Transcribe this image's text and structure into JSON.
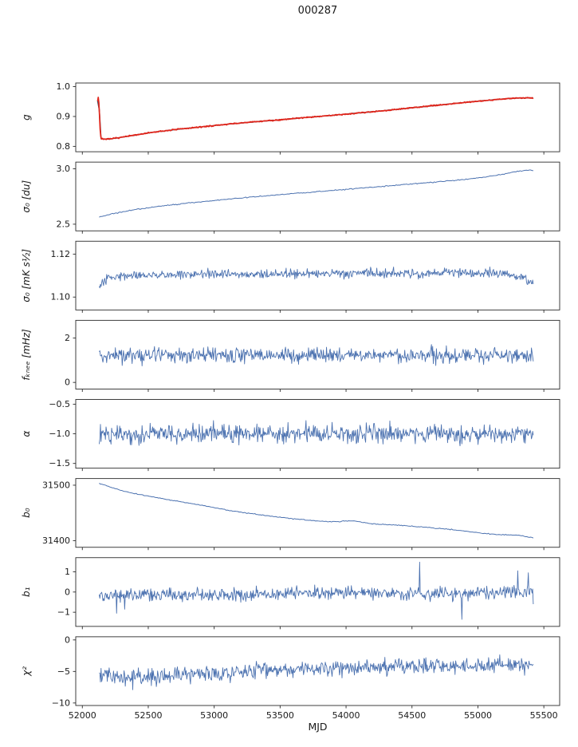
{
  "title": "000287",
  "chart_data": {
    "type": "line",
    "title": "000287",
    "xlabel": "MJD",
    "xlim": [
      51950,
      55620
    ],
    "x_range": [
      52128,
      55420
    ],
    "xtick_vals": [
      52000,
      52500,
      53000,
      53500,
      54000,
      54500,
      55000,
      55500
    ],
    "xtick_labels": [
      "52000",
      "52500",
      "53000",
      "53500",
      "54000",
      "54500",
      "55000",
      "55500"
    ],
    "grid": false,
    "legend": "none",
    "line_color": "#4c72b0",
    "model_color": "#4d4d5c",
    "data_color": "#e1251b",
    "panels": [
      {
        "ylabel": "g",
        "ylim": [
          0.782,
          1.012
        ],
        "ytick_vals": [
          1.0,
          0.9,
          0.8
        ],
        "ytick_labels": [
          "1.0",
          "0.9",
          "0.8"
        ],
        "series": [
          {
            "name": "model",
            "color": "#4d4d5c",
            "width": 1.5,
            "n": 260,
            "noise": 0.0005,
            "seed": 11,
            "x_range": [
              52116,
              55420
            ],
            "base_points": [
              [
                52116,
                0.952
              ],
              [
                52122,
                0.968
              ],
              [
                52128,
                0.93
              ],
              [
                52134,
                0.862
              ],
              [
                52142,
                0.825
              ],
              [
                52200,
                0.824
              ],
              [
                52350,
                0.834
              ],
              [
                52500,
                0.845
              ],
              [
                52700,
                0.856
              ],
              [
                52900,
                0.865
              ],
              [
                53100,
                0.874
              ],
              [
                53300,
                0.882
              ],
              [
                53500,
                0.889
              ],
              [
                53700,
                0.897
              ],
              [
                53900,
                0.904
              ],
              [
                54100,
                0.912
              ],
              [
                54300,
                0.92
              ],
              [
                54500,
                0.929
              ],
              [
                54700,
                0.938
              ],
              [
                54900,
                0.947
              ],
              [
                55050,
                0.953
              ],
              [
                55200,
                0.959
              ],
              [
                55320,
                0.962
              ],
              [
                55420,
                0.962
              ]
            ]
          },
          {
            "name": "data",
            "color": "#e1251b",
            "width": 1.7,
            "n": 700,
            "noise": 0.0016,
            "seed": 7,
            "x_range": [
              52116,
              55420
            ],
            "base_points": [
              [
                52116,
                0.952
              ],
              [
                52122,
                0.968
              ],
              [
                52128,
                0.93
              ],
              [
                52134,
                0.862
              ],
              [
                52142,
                0.825
              ],
              [
                52200,
                0.824
              ],
              [
                52350,
                0.834
              ],
              [
                52500,
                0.845
              ],
              [
                52700,
                0.856
              ],
              [
                52900,
                0.865
              ],
              [
                53100,
                0.874
              ],
              [
                53300,
                0.882
              ],
              [
                53500,
                0.889
              ],
              [
                53700,
                0.897
              ],
              [
                53900,
                0.904
              ],
              [
                54100,
                0.912
              ],
              [
                54300,
                0.92
              ],
              [
                54500,
                0.929
              ],
              [
                54700,
                0.938
              ],
              [
                54900,
                0.947
              ],
              [
                55050,
                0.953
              ],
              [
                55200,
                0.959
              ],
              [
                55320,
                0.962
              ],
              [
                55420,
                0.962
              ]
            ]
          }
        ]
      },
      {
        "ylabel": "σ₀ [du]",
        "ylim": [
          2.44,
          3.06
        ],
        "ytick_vals": [
          3.0,
          2.5
        ],
        "ytick_labels": [
          "3.0",
          "2.5"
        ],
        "series": [
          {
            "name": "sigma0_du",
            "color": "#4c72b0",
            "width": 1.0,
            "n": 330,
            "noise": 0.004,
            "seed": 21,
            "base_points": [
              [
                52130,
                2.565
              ],
              [
                52250,
                2.6
              ],
              [
                52400,
                2.632
              ],
              [
                52550,
                2.655
              ],
              [
                52700,
                2.678
              ],
              [
                52850,
                2.697
              ],
              [
                53000,
                2.714
              ],
              [
                53200,
                2.736
              ],
              [
                53400,
                2.757
              ],
              [
                53600,
                2.776
              ],
              [
                53800,
                2.795
              ],
              [
                54000,
                2.814
              ],
              [
                54200,
                2.833
              ],
              [
                54400,
                2.853
              ],
              [
                54600,
                2.872
              ],
              [
                54800,
                2.893
              ],
              [
                55000,
                2.916
              ],
              [
                55150,
                2.942
              ],
              [
                55280,
                2.972
              ],
              [
                55370,
                2.988
              ],
              [
                55420,
                2.983
              ]
            ]
          }
        ]
      },
      {
        "ylabel": "σ₀ [mK s½]",
        "ylim": [
          1.094,
          1.126
        ],
        "ytick_vals": [
          1.12,
          1.1
        ],
        "ytick_labels": [
          "1.12",
          "1.10"
        ],
        "series": [
          {
            "name": "sigma0_mK",
            "color": "#4c72b0",
            "width": 0.9,
            "n": 700,
            "noise": 0.0018,
            "seed": 31,
            "base_points": [
              [
                52130,
                1.1045
              ],
              [
                52190,
                1.1085
              ],
              [
                52300,
                1.1103
              ],
              [
                53000,
                1.1105
              ],
              [
                53800,
                1.1108
              ],
              [
                54600,
                1.1112
              ],
              [
                55200,
                1.1113
              ],
              [
                55330,
                1.109
              ],
              [
                55420,
                1.1068
              ]
            ]
          }
        ]
      },
      {
        "ylabel": "fₖₙₑₑ [mHz]",
        "ylim": [
          -0.3,
          2.8
        ],
        "ytick_vals": [
          2,
          0
        ],
        "ytick_labels": [
          "2",
          "0"
        ],
        "series": [
          {
            "name": "f_knee",
            "color": "#4c72b0",
            "width": 0.9,
            "n": 700,
            "noise": 0.3,
            "seed": 41,
            "base_points": [
              [
                52130,
                1.22
              ],
              [
                55420,
                1.24
              ]
            ]
          }
        ]
      },
      {
        "ylabel": "α",
        "ylim": [
          -1.58,
          -0.42
        ],
        "ytick_vals": [
          -0.5,
          -1.0,
          -1.5
        ],
        "ytick_labels": [
          "−0.5",
          "−1.0",
          "−1.5"
        ],
        "series": [
          {
            "name": "alpha",
            "color": "#4c72b0",
            "width": 0.9,
            "n": 700,
            "noise": 0.135,
            "seed": 51,
            "base_points": [
              [
                52130,
                -1.0
              ],
              [
                55420,
                -1.0
              ]
            ]
          }
        ]
      },
      {
        "ylabel": "b₀",
        "ylim": [
          31388,
          31512
        ],
        "ytick_vals": [
          31500,
          31400
        ],
        "ytick_labels": [
          "31500",
          "31400"
        ],
        "series": [
          {
            "name": "b0",
            "color": "#4c72b0",
            "width": 1.0,
            "n": 330,
            "noise": 0.7,
            "seed": 61,
            "base_points": [
              [
                52130,
                31503
              ],
              [
                52300,
                31490
              ],
              [
                52500,
                31480
              ],
              [
                52700,
                31472
              ],
              [
                52900,
                31464
              ],
              [
                53100,
                31455
              ],
              [
                53300,
                31448
              ],
              [
                53500,
                31442
              ],
              [
                53700,
                31437
              ],
              [
                53900,
                31434
              ],
              [
                54050,
                31436
              ],
              [
                54200,
                31430
              ],
              [
                54400,
                31428
              ],
              [
                54600,
                31424
              ],
              [
                54800,
                31420
              ],
              [
                55000,
                31414
              ],
              [
                55150,
                31411
              ],
              [
                55300,
                31410
              ],
              [
                55420,
                31405
              ]
            ]
          }
        ]
      },
      {
        "ylabel": "b₁",
        "ylim": [
          -1.7,
          1.7
        ],
        "ytick_vals": [
          1,
          0,
          -1
        ],
        "ytick_labels": [
          "1",
          "0",
          "−1"
        ],
        "series": [
          {
            "name": "b1",
            "color": "#4c72b0",
            "width": 0.9,
            "n": 700,
            "noise": 0.27,
            "seed": 71,
            "base_points": [
              [
                52130,
                -0.18
              ],
              [
                53000,
                -0.12
              ],
              [
                54000,
                -0.02
              ],
              [
                54600,
                -0.1
              ],
              [
                55420,
                0.02
              ]
            ],
            "spikes": [
              [
                52260,
                -1.05
              ],
              [
                52320,
                -0.85
              ],
              [
                54560,
                1.48
              ],
              [
                54880,
                -1.35
              ],
              [
                55300,
                1.05
              ],
              [
                55380,
                0.95
              ],
              [
                55420,
                -0.6
              ]
            ]
          }
        ]
      },
      {
        "ylabel": "χ²",
        "ylim": [
          -10.4,
          0.5
        ],
        "ytick_vals": [
          0,
          -5,
          -10
        ],
        "ytick_labels": [
          "0",
          "−5",
          "−10"
        ],
        "series": [
          {
            "name": "chi2",
            "color": "#4c72b0",
            "width": 0.9,
            "n": 700,
            "noise": 1.05,
            "seed": 81,
            "base_points": [
              [
                52130,
                -5.3
              ],
              [
                52350,
                -6.0
              ],
              [
                52700,
                -5.6
              ],
              [
                53200,
                -5.0
              ],
              [
                54000,
                -4.4
              ],
              [
                54800,
                -4.2
              ],
              [
                55420,
                -4.0
              ]
            ],
            "spikes": [
              [
                52380,
                -7.9
              ],
              [
                52560,
                -7.4
              ],
              [
                52820,
                -7.0
              ],
              [
                53120,
                -6.8
              ]
            ]
          }
        ]
      }
    ]
  }
}
